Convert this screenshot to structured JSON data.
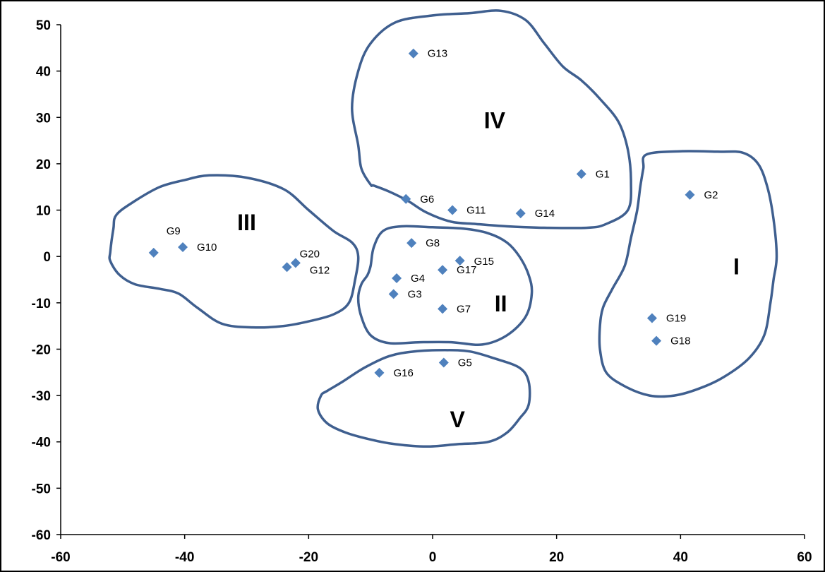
{
  "chart_data": {
    "type": "scatter",
    "title": "",
    "xlabel": "",
    "ylabel": "",
    "xlim": [
      -60,
      60
    ],
    "ylim": [
      -60,
      50
    ],
    "x_ticks": [
      -60,
      -40,
      -20,
      0,
      20,
      40,
      60
    ],
    "y_ticks": [
      50,
      40,
      30,
      20,
      10,
      0,
      -10,
      -20,
      -30,
      -40,
      -50,
      -60
    ],
    "x_tick_labels": [
      "-60",
      "-40",
      "-20",
      "0",
      "20",
      "40",
      "60"
    ],
    "y_tick_labels": [
      "50",
      "40",
      "30",
      "20",
      "10",
      "0",
      "-10",
      "-20",
      "-30",
      "-40",
      "-50",
      "-60"
    ],
    "grid": false,
    "legend": "none",
    "marker_color": "#4F81BD",
    "marker_shape": "diamond",
    "outline_color": "#3F5F8F",
    "points": [
      {
        "label": "G1",
        "x": 24,
        "y": 17.8
      },
      {
        "label": "G2",
        "x": 41.5,
        "y": 13.3
      },
      {
        "label": "G3",
        "x": -6.3,
        "y": -8.1
      },
      {
        "label": "G4",
        "x": -5.8,
        "y": -4.7
      },
      {
        "label": "G5",
        "x": 1.8,
        "y": -22.9
      },
      {
        "label": "G6",
        "x": -4.3,
        "y": 12.4
      },
      {
        "label": "G7",
        "x": 1.6,
        "y": -11.3
      },
      {
        "label": "G8",
        "x": -3.4,
        "y": 2.9
      },
      {
        "label": "G9",
        "x": -45,
        "y": 0.8
      },
      {
        "label": "G10",
        "x": -40.3,
        "y": 2
      },
      {
        "label": "G11",
        "x": 3.2,
        "y": 10
      },
      {
        "label": "G12",
        "x": -22.1,
        "y": -1.4
      },
      {
        "label": "G13",
        "x": -3.1,
        "y": 43.8
      },
      {
        "label": "G14",
        "x": 14.2,
        "y": 9.3
      },
      {
        "label": "G15",
        "x": 4.4,
        "y": -0.9
      },
      {
        "label": "G16",
        "x": -8.6,
        "y": -25.1
      },
      {
        "label": "G17",
        "x": 1.6,
        "y": -2.9
      },
      {
        "label": "G18",
        "x": 36.1,
        "y": -18.2
      },
      {
        "label": "G19",
        "x": 35.4,
        "y": -13.3
      },
      {
        "label": "G20",
        "x": -23.5,
        "y": -2.3
      }
    ],
    "clusters": [
      {
        "label": "I",
        "x": 49,
        "y": -2
      },
      {
        "label": "II",
        "x": 11,
        "y": -10
      },
      {
        "label": "III",
        "x": -30,
        "y": 7.5
      },
      {
        "label": "IV",
        "x": 10,
        "y": 29.5
      },
      {
        "label": "V",
        "x": 4,
        "y": -35
      }
    ]
  }
}
